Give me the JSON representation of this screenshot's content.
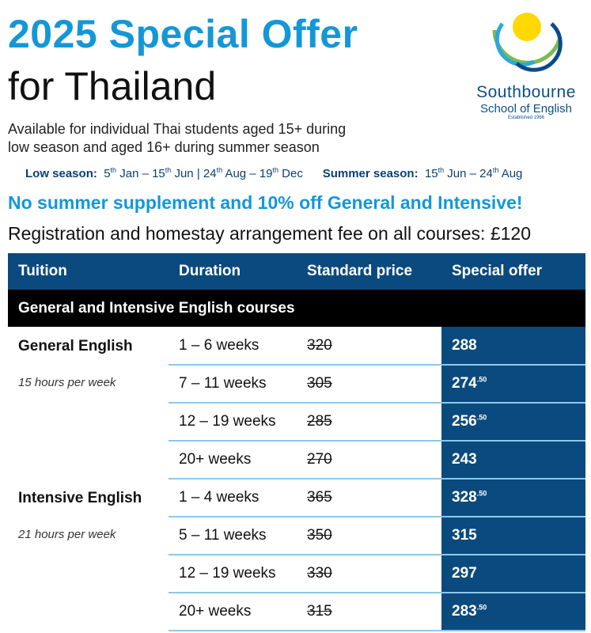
{
  "title_line1": "2025 Special Offer",
  "title_line2": "for Thailand",
  "subtitle_line1": "Available for individual Thai students aged 15+ during",
  "subtitle_line2": "low season and aged 16+ during summer season",
  "seasons": {
    "low_label": "Low season:",
    "low_1_day": "5",
    "low_1_sup": "th",
    "low_1_rest": " Jan – ",
    "low_2_day": "15",
    "low_2_sup": "th",
    "low_2_rest": " Jun | ",
    "low_3_day": "24",
    "low_3_sup": "th",
    "low_3_rest": " Aug – ",
    "low_4_day": "19",
    "low_4_sup": "th",
    "low_4_rest": " Dec",
    "summer_label": "Summer season:",
    "s_1_day": "15",
    "s_1_sup": "th",
    "s_1_rest": " Jun – ",
    "s_2_day": "24",
    "s_2_sup": "th",
    "s_2_rest": " Aug"
  },
  "promo": "No summer supplement and 10% off General and Intensive!",
  "fee": "Registration and homestay arrangement fee on all courses: £120",
  "logo": {
    "name": "Southbourne",
    "subname": "School of English",
    "established": "Established 1966"
  },
  "colors": {
    "accent": "#1497d8",
    "navy": "#0b4a7e",
    "divider": "#8cc8ee"
  },
  "table": {
    "headers": [
      "Tuition",
      "Duration",
      "Standard price",
      "Special offer"
    ],
    "section": "General and Intensive English courses",
    "groups": [
      {
        "name": "General English",
        "hours": "15 hours per week",
        "rows": [
          {
            "duration": "1 – 6 weeks",
            "standard": "320",
            "offer": "288",
            "offer_dec": ""
          },
          {
            "duration": "7 – 11 weeks",
            "standard": "305",
            "offer": "274",
            "offer_dec": ".50"
          },
          {
            "duration": "12 – 19 weeks",
            "standard": "285",
            "offer": "256",
            "offer_dec": ".50"
          },
          {
            "duration": "20+ weeks",
            "standard": "270",
            "offer": "243",
            "offer_dec": ""
          }
        ]
      },
      {
        "name": "Intensive English",
        "hours": "21 hours per week",
        "rows": [
          {
            "duration": "1 – 4 weeks",
            "standard": "365",
            "offer": "328",
            "offer_dec": ".50"
          },
          {
            "duration": "5 – 11 weeks",
            "standard": "350",
            "offer": "315",
            "offer_dec": ""
          },
          {
            "duration": "12 – 19 weeks",
            "standard": "330",
            "offer": "297",
            "offer_dec": ""
          },
          {
            "duration": "20+ weeks",
            "standard": "315",
            "offer": "283",
            "offer_dec": ".50"
          }
        ]
      }
    ]
  }
}
